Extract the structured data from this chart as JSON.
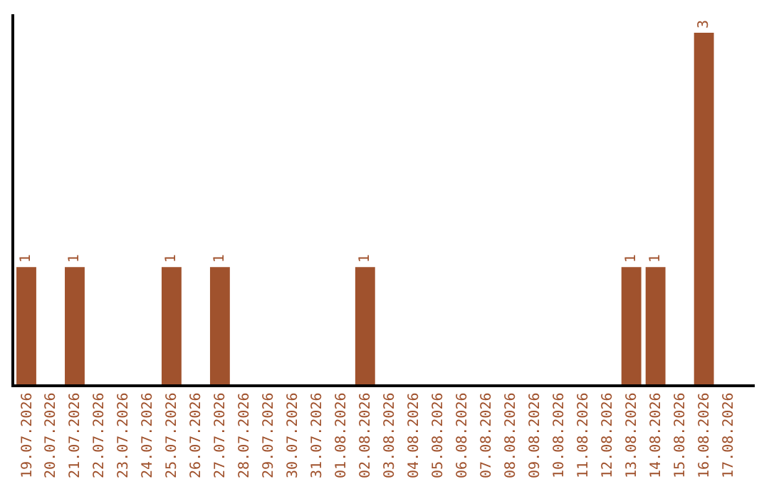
{
  "chart_data": {
    "type": "bar",
    "categories": [
      "19.07.2026",
      "20.07.2026",
      "21.07.2026",
      "22.07.2026",
      "23.07.2026",
      "24.07.2026",
      "25.07.2026",
      "26.07.2026",
      "27.07.2026",
      "28.07.2026",
      "29.07.2026",
      "30.07.2026",
      "31.07.2026",
      "01.08.2026",
      "02.08.2026",
      "03.08.2026",
      "04.08.2026",
      "05.08.2026",
      "06.08.2026",
      "07.08.2026",
      "08.08.2026",
      "09.08.2026",
      "10.08.2026",
      "11.08.2026",
      "12.08.2026",
      "13.08.2026",
      "14.08.2026",
      "15.08.2026",
      "16.08.2026",
      "17.08.2026"
    ],
    "values": [
      1,
      null,
      1,
      null,
      null,
      null,
      1,
      null,
      1,
      null,
      null,
      null,
      null,
      null,
      1,
      null,
      null,
      null,
      null,
      null,
      null,
      null,
      null,
      null,
      null,
      1,
      1,
      null,
      3,
      null
    ],
    "color": "#a0522d",
    "data_labels": true,
    "tick_labels": "x"
  }
}
